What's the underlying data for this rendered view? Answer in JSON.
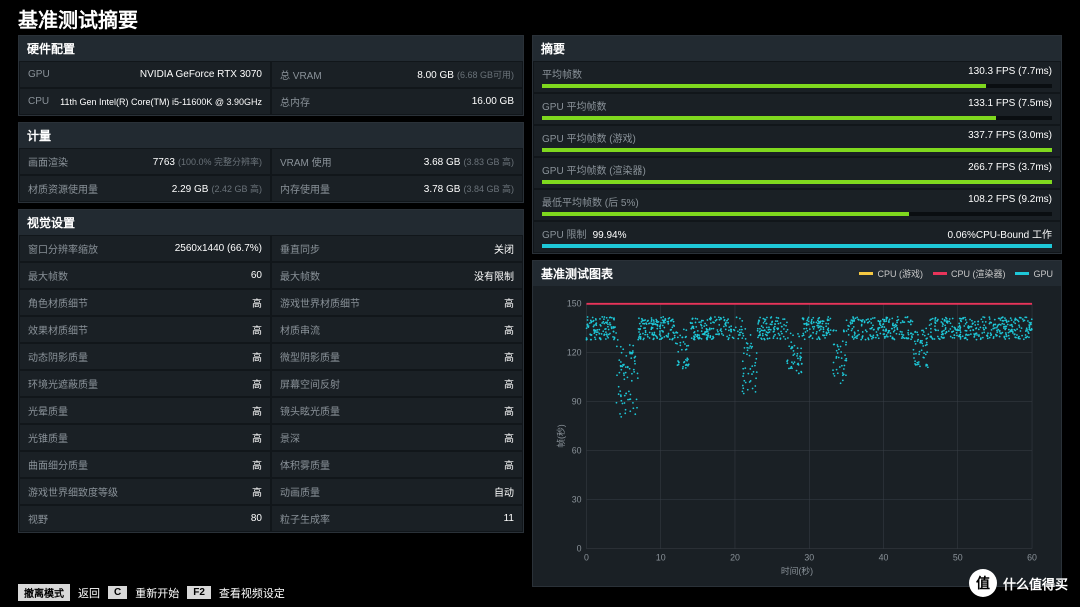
{
  "title": "基准测试摘要",
  "colors": {
    "bar_green": "#7fd81e",
    "bar_cyan": "#1ec8d8",
    "cpu_game": "#f5c842",
    "cpu_render": "#e8345a",
    "gpu": "#1ec8d8",
    "grid": "#3a4148",
    "bg": "#1a2025"
  },
  "hardware": {
    "header": "硬件配置",
    "gpu_label": "GPU",
    "gpu_value": "NVIDIA GeForce RTX 3070",
    "vram_label": "总 VRAM",
    "vram_value": "8.00 GB",
    "vram_sub": "(6.68 GB可用)",
    "cpu_label": "CPU",
    "cpu_value": "11th Gen Intel(R) Core(TM) i5-11600K @ 3.90GHz",
    "mem_label": "总内存",
    "mem_value": "16.00 GB"
  },
  "meter": {
    "header": "计量",
    "r1l_label": "画面渲染",
    "r1l_value": "7763",
    "r1l_sub": "(100.0% 完整分辨率)",
    "r1r_label": "VRAM 使用",
    "r1r_value": "3.68 GB",
    "r1r_sub": "(3.83 GB 高)",
    "r2l_label": "材质资源使用量",
    "r2l_value": "2.29 GB",
    "r2l_sub": "(2.42 GB 高)",
    "r2r_label": "内存使用量",
    "r2r_value": "3.78 GB",
    "r2r_sub": "(3.84 GB 高)"
  },
  "visual": {
    "header": "视觉设置",
    "rows": [
      {
        "l_label": "窗口分辨率缩放",
        "l_value": "2560x1440 (66.7%)",
        "r_label": "垂直同步",
        "r_value": "关闭"
      },
      {
        "l_label": "最大帧数",
        "l_value": "60",
        "r_label": "最大帧数",
        "r_value": "没有限制"
      },
      {
        "l_label": "角色材质细节",
        "l_value": "高",
        "r_label": "游戏世界材质细节",
        "r_value": "高"
      },
      {
        "l_label": "效果材质细节",
        "l_value": "高",
        "r_label": "材质串流",
        "r_value": "高"
      },
      {
        "l_label": "动态阴影质量",
        "l_value": "高",
        "r_label": "微型阴影质量",
        "r_value": "高"
      },
      {
        "l_label": "环境光遮蔽质量",
        "l_value": "高",
        "r_label": "屏幕空间反射",
        "r_value": "高"
      },
      {
        "l_label": "光晕质量",
        "l_value": "高",
        "r_label": "镜头眩光质量",
        "r_value": "高"
      },
      {
        "l_label": "光锥质量",
        "l_value": "高",
        "r_label": "景深",
        "r_value": "高"
      },
      {
        "l_label": "曲面细分质量",
        "l_value": "高",
        "r_label": "体积雾质量",
        "r_value": "高"
      },
      {
        "l_label": "游戏世界细致度等级",
        "l_value": "高",
        "r_label": "动画质量",
        "r_value": "自动"
      },
      {
        "l_label": "视野",
        "l_value": "80",
        "r_label": "粒子生成率",
        "r_value": "11"
      }
    ]
  },
  "summary": {
    "header": "摘要",
    "bars": [
      {
        "label": "平均帧数",
        "value": "130.3 FPS (7.7ms)",
        "pct": 87,
        "color": "#7fd81e"
      },
      {
        "label": "GPU 平均帧数",
        "value": "133.1 FPS (7.5ms)",
        "pct": 89,
        "color": "#7fd81e"
      },
      {
        "label": "GPU 平均帧数 (游戏)",
        "value": "337.7 FPS (3.0ms)",
        "pct": 100,
        "color": "#7fd81e"
      },
      {
        "label": "GPU 平均帧数 (渲染器)",
        "value": "266.7 FPS (3.7ms)",
        "pct": 100,
        "color": "#7fd81e"
      },
      {
        "label": "最低平均帧数 (后 5%)",
        "value": "108.2 FPS (9.2ms)",
        "pct": 72,
        "color": "#7fd81e"
      }
    ],
    "limit_label": "GPU 限制",
    "limit_left": "99.94%",
    "limit_right": "0.06%CPU-Bound 工作"
  },
  "chart": {
    "header": "基准测试图表",
    "legend": [
      {
        "label": "CPU (游戏)",
        "color": "#f5c842"
      },
      {
        "label": "CPU (渲染器)",
        "color": "#e8345a"
      },
      {
        "label": "GPU",
        "color": "#1ec8d8"
      }
    ],
    "ylabel": "帧(秒)",
    "xlabel": "时间(秒)",
    "ylim": [
      0,
      150
    ],
    "yticks": [
      0,
      30,
      60,
      90,
      120,
      150
    ],
    "xlim": [
      0,
      60
    ],
    "xticks": [
      0,
      10,
      20,
      30,
      40,
      50,
      60
    ],
    "cpu_game_line": 150,
    "cpu_render_line": 150
  },
  "footer": {
    "key1": "撤离模式",
    "act1": "返回",
    "key2": "C",
    "act2": "重新开始",
    "key3": "F2",
    "act3": "查看视频设定"
  },
  "watermark": "什么值得买"
}
